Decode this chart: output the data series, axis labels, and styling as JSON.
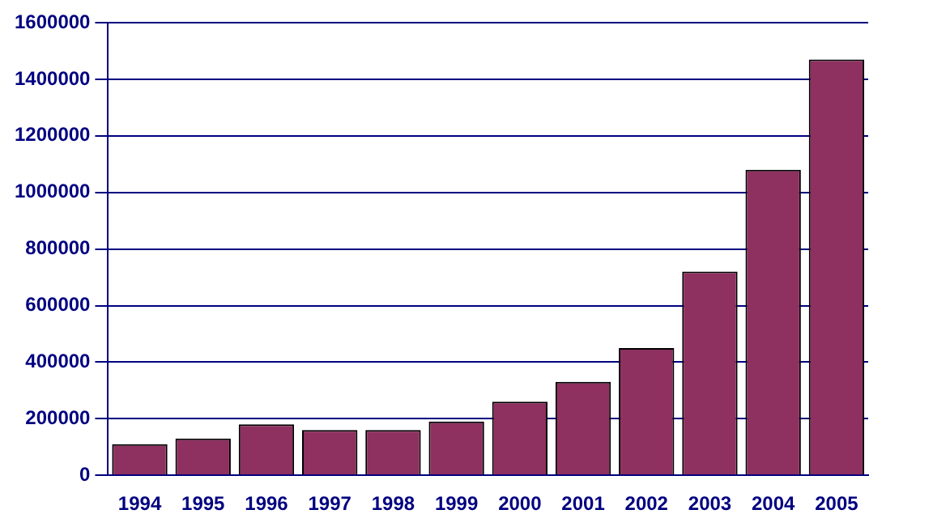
{
  "chart_data": {
    "type": "bar",
    "categories": [
      "1994",
      "1995",
      "1996",
      "1997",
      "1998",
      "1999",
      "2000",
      "2001",
      "2002",
      "2003",
      "2004",
      "2005"
    ],
    "values": [
      110000,
      130000,
      180000,
      160000,
      160000,
      190000,
      260000,
      330000,
      450000,
      720000,
      1080000,
      1470000
    ],
    "color": "#8e3060",
    "ylim": [
      0,
      1600000
    ],
    "yticks": [
      0,
      200000,
      400000,
      600000,
      800000,
      1000000,
      1200000,
      1400000,
      1600000
    ],
    "grid": "y",
    "legend": false
  }
}
